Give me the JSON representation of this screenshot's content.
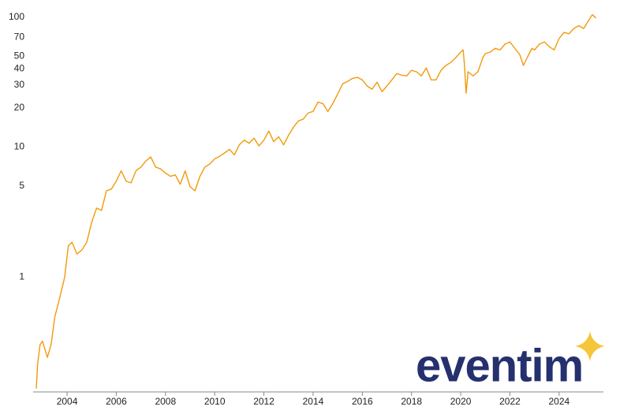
{
  "chart_data": {
    "type": "line",
    "y_scale": "log",
    "color": "#f29a0a",
    "logo_text": "eventim",
    "xlim": [
      2002.62,
      2025.8
    ],
    "xticks": [
      2004,
      2006,
      2008,
      2010,
      2012,
      2014,
      2016,
      2018,
      2020,
      2022,
      2024
    ],
    "ylim": [
      0.13,
      110
    ],
    "yticks": [
      1,
      5,
      10,
      20,
      30,
      40,
      50,
      70,
      100
    ],
    "x": [
      2002.75,
      2002.8,
      2002.9,
      2003.0,
      2003.2,
      2003.35,
      2003.5,
      2003.7,
      2003.9,
      2004.05,
      2004.2,
      2004.4,
      2004.6,
      2004.8,
      2005.0,
      2005.2,
      2005.4,
      2005.6,
      2005.8,
      2006.0,
      2006.2,
      2006.4,
      2006.6,
      2006.8,
      2007.0,
      2007.2,
      2007.4,
      2007.6,
      2007.8,
      2008.0,
      2008.2,
      2008.4,
      2008.6,
      2008.8,
      2009.0,
      2009.2,
      2009.4,
      2009.6,
      2009.8,
      2010.0,
      2010.2,
      2010.4,
      2010.6,
      2010.8,
      2011.0,
      2011.2,
      2011.4,
      2011.6,
      2011.8,
      2012.0,
      2012.2,
      2012.4,
      2012.6,
      2012.8,
      2013.0,
      2013.2,
      2013.4,
      2013.6,
      2013.8,
      2014.0,
      2014.2,
      2014.4,
      2014.6,
      2014.8,
      2015.0,
      2015.2,
      2015.4,
      2015.6,
      2015.8,
      2016.0,
      2016.2,
      2016.4,
      2016.6,
      2016.8,
      2017.0,
      2017.2,
      2017.4,
      2017.6,
      2017.8,
      2018.0,
      2018.2,
      2018.4,
      2018.6,
      2018.8,
      2019.0,
      2019.2,
      2019.4,
      2019.6,
      2019.8,
      2020.0,
      2020.1,
      2020.15,
      2020.22,
      2020.3,
      2020.5,
      2020.7,
      2020.9,
      2021.0,
      2021.2,
      2021.4,
      2021.6,
      2021.8,
      2022.0,
      2022.2,
      2022.4,
      2022.55,
      2022.7,
      2022.9,
      2023.0,
      2023.2,
      2023.4,
      2023.6,
      2023.8,
      2024.0,
      2024.2,
      2024.4,
      2024.6,
      2024.8,
      2025.0,
      2025.2,
      2025.35,
      2025.5
    ],
    "values": [
      0.138,
      0.21,
      0.3,
      0.32,
      0.24,
      0.3,
      0.49,
      0.69,
      0.99,
      1.73,
      1.85,
      1.5,
      1.61,
      1.85,
      2.63,
      3.39,
      3.25,
      4.6,
      4.75,
      5.46,
      6.56,
      5.46,
      5.3,
      6.56,
      7.0,
      7.8,
      8.4,
      7.0,
      6.8,
      6.3,
      5.95,
      6.1,
      5.17,
      6.56,
      4.95,
      4.6,
      5.95,
      7.0,
      7.4,
      8.1,
      8.5,
      9.0,
      9.6,
      8.7,
      10.4,
      11.3,
      10.7,
      11.7,
      10.2,
      11.3,
      13.3,
      11.0,
      12.0,
      10.4,
      12.3,
      14.2,
      15.9,
      16.4,
      18.3,
      18.8,
      22.2,
      21.6,
      18.8,
      21.6,
      25.6,
      30.7,
      32,
      33.8,
      34.4,
      32.9,
      29.5,
      27.9,
      31.6,
      26.7,
      29.5,
      32.9,
      36.8,
      35.8,
      35.3,
      39,
      38,
      35.3,
      40.7,
      32.9,
      32.9,
      39,
      42.5,
      44.9,
      48.8,
      53.9,
      56,
      43.7,
      26,
      38,
      35.3,
      38,
      48.8,
      52.5,
      53.9,
      57.6,
      56,
      62,
      64.5,
      57.6,
      51.5,
      42.5,
      48.8,
      57.6,
      56,
      62,
      64.5,
      59.3,
      56,
      68.6,
      76.4,
      74.5,
      81.9,
      86,
      81.9,
      94.5,
      104.5,
      98.6
    ]
  }
}
